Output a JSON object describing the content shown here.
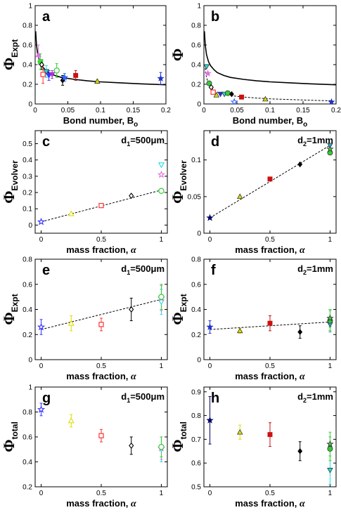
{
  "figure": {
    "panels": [
      {
        "letter": "a",
        "ylabel_main": "Φ",
        "ylabel_sub": "Expt",
        "xlabel": "Bond number, B",
        "xlabel_sub": "o",
        "annotation": "",
        "annotation_sub": "",
        "annotation_rest": ""
      },
      {
        "letter": "b",
        "ylabel_main": "Φ",
        "ylabel_sub": "",
        "xlabel": "Bond number, B",
        "xlabel_sub": "o",
        "annotation": "",
        "annotation_sub": "",
        "annotation_rest": ""
      },
      {
        "letter": "c",
        "ylabel_main": "Φ",
        "ylabel_sub": "Evolver",
        "xlabel": "mass fraction, ",
        "xlabel_sub": "α",
        "annotation": "d",
        "annotation_sub": "1",
        "annotation_rest": "=500μm"
      },
      {
        "letter": "d",
        "ylabel_main": "Φ",
        "ylabel_sub": "Evolver",
        "xlabel": "mass fraction, ",
        "xlabel_sub": "α",
        "annotation": "d",
        "annotation_sub": "2",
        "annotation_rest": "=1mm"
      },
      {
        "letter": "e",
        "ylabel_main": "Φ",
        "ylabel_sub": "Expt",
        "xlabel": "mass fraction, ",
        "xlabel_sub": "α",
        "annotation": "d",
        "annotation_sub": "1",
        "annotation_rest": "=500μm"
      },
      {
        "letter": "f",
        "ylabel_main": "Φ",
        "ylabel_sub": "Expt",
        "xlabel": "mass fraction, ",
        "xlabel_sub": "α",
        "annotation": "d",
        "annotation_sub": "2",
        "annotation_rest": "=1mm"
      },
      {
        "letter": "g",
        "ylabel_main": "Φ",
        "ylabel_sub": "total",
        "xlabel": "mass fraction, ",
        "xlabel_sub": "α",
        "annotation": "d",
        "annotation_sub": "1",
        "annotation_rest": "=500μm"
      },
      {
        "letter": "h",
        "ylabel_main": "Φ",
        "ylabel_sub": "total",
        "xlabel": "mass fraction, ",
        "xlabel_sub": "α",
        "annotation": "d",
        "annotation_sub": "2",
        "annotation_rest": "=1mm"
      }
    ]
  },
  "chart_data": [
    {
      "type": "scatter",
      "panel": "a",
      "xlim": [
        0,
        0.2
      ],
      "ylim": [
        0,
        1
      ],
      "xticks": [
        0,
        0.05,
        0.1,
        0.15,
        0.2
      ],
      "xtick_labels": [
        "0",
        "0.05",
        "0.1",
        "0.15",
        "0.2"
      ],
      "yticks": [
        0,
        0.2,
        0.4,
        0.6,
        0.8,
        1
      ],
      "ytick_labels": [
        "0",
        "0.2",
        "0.4",
        "0.6",
        "0.8",
        "1"
      ],
      "curves": [
        {
          "style": "solid",
          "x": [
            0.0008,
            0.002,
            0.004,
            0.007,
            0.01,
            0.015,
            0.02,
            0.03,
            0.04,
            0.06,
            0.08,
            0.1,
            0.13,
            0.16,
            0.2
          ],
          "y": [
            0.74,
            0.6,
            0.5,
            0.43,
            0.39,
            0.35,
            0.32,
            0.29,
            0.27,
            0.25,
            0.235,
            0.225,
            0.215,
            0.205,
            0.195
          ]
        }
      ],
      "points": [
        {
          "x": 0.005,
          "y": 0.5,
          "err": 0.1,
          "color": "#e070e0",
          "marker": "triangle"
        },
        {
          "x": 0.008,
          "y": 0.43,
          "err": 0.08,
          "color": "#33dd33",
          "marker": "circle"
        },
        {
          "x": 0.01,
          "y": 0.4,
          "err": 0.05,
          "color": "#000000",
          "marker": "diamond-open"
        },
        {
          "x": 0.012,
          "y": 0.3,
          "err": 0.09,
          "color": "#ff3333",
          "marker": "square-open"
        },
        {
          "x": 0.017,
          "y": 0.33,
          "err": 0.06,
          "color": "#22dddd",
          "marker": "triangle-down"
        },
        {
          "x": 0.021,
          "y": 0.29,
          "err": 0.05,
          "color": "#3333ff",
          "marker": "triangle-down"
        },
        {
          "x": 0.026,
          "y": 0.3,
          "err": 0.04,
          "color": "#aa33cc",
          "marker": "triangle-down"
        },
        {
          "x": 0.033,
          "y": 0.34,
          "err": 0.07,
          "color": "#33cc33",
          "marker": "circle-open"
        },
        {
          "x": 0.042,
          "y": 0.24,
          "err": 0.05,
          "color": "#000000",
          "marker": "diamond"
        },
        {
          "x": 0.045,
          "y": 0.27,
          "err": 0.04,
          "color": "#3366ff",
          "marker": "star"
        },
        {
          "x": 0.062,
          "y": 0.29,
          "err": 0.05,
          "color": "#cc1111",
          "marker": "square"
        },
        {
          "x": 0.095,
          "y": 0.23,
          "err": 0.02,
          "color": "#dddd00",
          "marker": "triangle"
        },
        {
          "x": 0.192,
          "y": 0.26,
          "err": 0.06,
          "color": "#2233cc",
          "marker": "star"
        }
      ]
    },
    {
      "type": "scatter",
      "panel": "b",
      "xlim": [
        0,
        0.2
      ],
      "ylim": [
        0,
        1
      ],
      "xticks": [
        0,
        0.05,
        0.1,
        0.15,
        0.2
      ],
      "xtick_labels": [
        "0",
        "0.05",
        "0.1",
        "0.15",
        "0.2"
      ],
      "yticks": [
        0,
        0.2,
        0.4,
        0.6,
        0.8,
        1
      ],
      "ytick_labels": [
        "0",
        "0.2",
        "0.4",
        "0.6",
        "0.8",
        "1"
      ],
      "curves": [
        {
          "style": "solid",
          "x": [
            0.0008,
            0.002,
            0.004,
            0.007,
            0.01,
            0.015,
            0.02,
            0.03,
            0.04,
            0.06,
            0.08,
            0.1,
            0.13,
            0.16,
            0.2
          ],
          "y": [
            0.74,
            0.6,
            0.5,
            0.43,
            0.39,
            0.35,
            0.32,
            0.29,
            0.27,
            0.25,
            0.235,
            0.225,
            0.215,
            0.205,
            0.195
          ]
        },
        {
          "style": "dashed",
          "x": [
            0.0015,
            0.003,
            0.006,
            0.01,
            0.015,
            0.02,
            0.03,
            0.04,
            0.06,
            0.08,
            0.1,
            0.13,
            0.16,
            0.195
          ],
          "y": [
            0.4,
            0.3,
            0.22,
            0.17,
            0.14,
            0.12,
            0.1,
            0.085,
            0.07,
            0.06,
            0.052,
            0.045,
            0.038,
            0.032
          ]
        }
      ],
      "points": [
        {
          "x": 0.004,
          "y": 0.38,
          "color": "#22dddd",
          "marker": "triangle-down"
        },
        {
          "x": 0.006,
          "y": 0.31,
          "color": "#e070e0",
          "marker": "star"
        },
        {
          "x": 0.008,
          "y": 0.21,
          "color": "#33cc33",
          "marker": "circle"
        },
        {
          "x": 0.011,
          "y": 0.17,
          "color": "#000000",
          "marker": "diamond-open"
        },
        {
          "x": 0.014,
          "y": 0.12,
          "color": "#ff3333",
          "marker": "square-open"
        },
        {
          "x": 0.019,
          "y": 0.09,
          "color": "#dddd00",
          "marker": "triangle"
        },
        {
          "x": 0.025,
          "y": 0.1,
          "color": "#3333aa",
          "marker": "triangle-down"
        },
        {
          "x": 0.031,
          "y": 0.1,
          "color": "#22dddd",
          "marker": "triangle-down"
        },
        {
          "x": 0.036,
          "y": 0.11,
          "color": "#33cc33",
          "marker": "circle"
        },
        {
          "x": 0.042,
          "y": 0.1,
          "color": "#000000",
          "marker": "diamond"
        },
        {
          "x": 0.046,
          "y": 0.02,
          "color": "#3366ff",
          "marker": "star-open"
        },
        {
          "x": 0.057,
          "y": 0.07,
          "color": "#cc1111",
          "marker": "square"
        },
        {
          "x": 0.093,
          "y": 0.05,
          "color": "#dddd00",
          "marker": "triangle"
        },
        {
          "x": 0.193,
          "y": 0.02,
          "color": "#2233cc",
          "marker": "star"
        }
      ]
    },
    {
      "type": "scatter",
      "panel": "c",
      "xlim": [
        -0.05,
        1.05
      ],
      "ylim": [
        -0.05,
        0.58
      ],
      "xticks": [
        0,
        0.5,
        1
      ],
      "xtick_labels": [
        "0",
        "0.5",
        "1"
      ],
      "yticks": [
        0,
        0.1,
        0.2,
        0.3,
        0.4,
        0.5
      ],
      "ytick_labels": [
        "0",
        "0.1",
        "0.2",
        "0.3",
        "0.4",
        "0.5"
      ],
      "curves": [
        {
          "style": "dashed",
          "x": [
            0,
            1
          ],
          "y": [
            0.02,
            0.215
          ]
        }
      ],
      "points": [
        {
          "x": 0,
          "y": 0.02,
          "color": "#3333ff",
          "marker": "star-open"
        },
        {
          "x": 0.25,
          "y": 0.07,
          "color": "#dddd00",
          "marker": "triangle-open"
        },
        {
          "x": 0.5,
          "y": 0.12,
          "color": "#ff3333",
          "marker": "square-open"
        },
        {
          "x": 0.75,
          "y": 0.18,
          "color": "#000000",
          "marker": "diamond-open"
        },
        {
          "x": 1,
          "y": 0.21,
          "color": "#33cc33",
          "marker": "circle-open"
        },
        {
          "x": 1,
          "y": 0.31,
          "color": "#e070e0",
          "marker": "star-open"
        },
        {
          "x": 1,
          "y": 0.37,
          "color": "#22dddd",
          "marker": "triangle-down-open"
        }
      ]
    },
    {
      "type": "scatter",
      "panel": "d",
      "xlim": [
        -0.05,
        1.05
      ],
      "ylim": [
        0,
        0.14
      ],
      "xticks": [
        0,
        0.5,
        1
      ],
      "xtick_labels": [
        "0",
        "0.5",
        "1"
      ],
      "yticks": [
        0,
        0.05,
        0.1
      ],
      "ytick_labels": [
        "0",
        "0.05",
        "0.1"
      ],
      "curves": [
        {
          "style": "dashed",
          "x": [
            0,
            1
          ],
          "y": [
            0.021,
            0.12
          ]
        }
      ],
      "points": [
        {
          "x": 0,
          "y": 0.021,
          "color": "#000066",
          "marker": "star"
        },
        {
          "x": 0.25,
          "y": 0.05,
          "color": "#dddd00",
          "marker": "triangle"
        },
        {
          "x": 0.5,
          "y": 0.074,
          "color": "#cc1111",
          "marker": "square"
        },
        {
          "x": 0.75,
          "y": 0.094,
          "color": "#000000",
          "marker": "diamond"
        },
        {
          "x": 1,
          "y": 0.11,
          "color": "#33cc33",
          "marker": "circle"
        },
        {
          "x": 1,
          "y": 0.115,
          "color": "#44cc44",
          "marker": "star"
        },
        {
          "x": 1,
          "y": 0.12,
          "color": "#22aacc",
          "marker": "triangle-down"
        }
      ]
    },
    {
      "type": "scatter",
      "panel": "e",
      "xlim": [
        -0.05,
        1.05
      ],
      "ylim": [
        0,
        0.8
      ],
      "xticks": [
        0,
        0.5,
        1
      ],
      "xtick_labels": [
        "0",
        "0.5",
        "1"
      ],
      "yticks": [
        0,
        0.2,
        0.4,
        0.6,
        0.8
      ],
      "ytick_labels": [
        "0",
        "0.2",
        "0.4",
        "0.6",
        "0.8"
      ],
      "curves": [
        {
          "style": "dashed",
          "x": [
            0,
            1
          ],
          "y": [
            0.24,
            0.48
          ]
        }
      ],
      "points": [
        {
          "x": 0,
          "y": 0.26,
          "err": 0.06,
          "color": "#3333ff",
          "marker": "star-open"
        },
        {
          "x": 0.25,
          "y": 0.29,
          "err": 0.06,
          "color": "#dddd00",
          "marker": "triangle-open"
        },
        {
          "x": 0.5,
          "y": 0.28,
          "err": 0.05,
          "color": "#ff3333",
          "marker": "square-open"
        },
        {
          "x": 0.75,
          "y": 0.4,
          "err": 0.09,
          "color": "#000000",
          "marker": "diamond-open"
        },
        {
          "x": 1,
          "y": 0.46,
          "err": 0.1,
          "color": "#22dddd",
          "marker": "triangle-down-open"
        },
        {
          "x": 1,
          "y": 0.49,
          "err": 0.1,
          "color": "#e070e0",
          "marker": "star-open"
        },
        {
          "x": 1,
          "y": 0.5,
          "err": 0.1,
          "color": "#33cc33",
          "marker": "circle-open"
        }
      ]
    },
    {
      "type": "scatter",
      "panel": "f",
      "xlim": [
        -0.05,
        1.05
      ],
      "ylim": [
        0,
        0.8
      ],
      "xticks": [
        0,
        0.5,
        1
      ],
      "xtick_labels": [
        "0",
        "0.5",
        "1"
      ],
      "yticks": [
        0,
        0.2,
        0.4,
        0.6,
        0.8
      ],
      "ytick_labels": [
        "0",
        "0.2",
        "0.4",
        "0.6",
        "0.8"
      ],
      "curves": [
        {
          "style": "dashed",
          "x": [
            0,
            1
          ],
          "y": [
            0.24,
            0.3
          ]
        }
      ],
      "points": [
        {
          "x": 0,
          "y": 0.26,
          "err": 0.05,
          "color": "#2233cc",
          "marker": "star"
        },
        {
          "x": 0.25,
          "y": 0.23,
          "err": 0.02,
          "color": "#dddd00",
          "marker": "triangle"
        },
        {
          "x": 0.5,
          "y": 0.29,
          "err": 0.06,
          "color": "#cc1111",
          "marker": "square"
        },
        {
          "x": 0.75,
          "y": 0.22,
          "err": 0.05,
          "color": "#000000",
          "marker": "diamond"
        },
        {
          "x": 1,
          "y": 0.28,
          "err": 0.06,
          "color": "#22aacc",
          "marker": "triangle-down"
        },
        {
          "x": 1,
          "y": 0.31,
          "err": 0.08,
          "color": "#33cc33",
          "marker": "circle"
        },
        {
          "x": 1,
          "y": 0.33,
          "err": 0.07,
          "color": "#44cc44",
          "marker": "star"
        }
      ]
    },
    {
      "type": "scatter",
      "panel": "g",
      "xlim": [
        -0.05,
        1.05
      ],
      "ylim": [
        0.2,
        1.0
      ],
      "xticks": [
        0,
        0.5,
        1
      ],
      "xtick_labels": [
        "0",
        "0.5",
        "1"
      ],
      "yticks": [
        0.2,
        0.4,
        0.6,
        0.8,
        1
      ],
      "ytick_labels": [
        "0.2",
        "0.4",
        "0.6",
        "0.8",
        "1"
      ],
      "curves": [],
      "points": [
        {
          "x": 0,
          "y": 0.82,
          "err": 0.05,
          "color": "#3333ff",
          "marker": "star-open"
        },
        {
          "x": 0.25,
          "y": 0.73,
          "err": 0.05,
          "color": "#dddd00",
          "marker": "triangle-open"
        },
        {
          "x": 0.5,
          "y": 0.61,
          "err": 0.05,
          "color": "#ff3333",
          "marker": "square-open"
        },
        {
          "x": 0.75,
          "y": 0.53,
          "err": 0.07,
          "color": "#000000",
          "marker": "diamond-open"
        },
        {
          "x": 1,
          "y": 0.5,
          "err": 0.1,
          "color": "#22dddd",
          "marker": "triangle-down-open"
        },
        {
          "x": 1,
          "y": 0.51,
          "err": 0.09,
          "color": "#e070e0",
          "marker": "star-open"
        },
        {
          "x": 1,
          "y": 0.52,
          "err": 0.08,
          "color": "#33cc33",
          "marker": "circle-open"
        }
      ]
    },
    {
      "type": "scatter",
      "panel": "h",
      "xlim": [
        -0.05,
        1.05
      ],
      "ylim": [
        0.5,
        0.92
      ],
      "xticks": [
        0,
        0.5,
        1
      ],
      "xtick_labels": [
        "0",
        "0.5",
        "1"
      ],
      "yticks": [
        0.5,
        0.6,
        0.7,
        0.8,
        0.9
      ],
      "ytick_labels": [
        "0.5",
        "0.6",
        "0.7",
        "0.8",
        "0.9"
      ],
      "curves": [],
      "points": [
        {
          "x": 0,
          "y": 0.78,
          "err": 0.1,
          "color": "#000066",
          "marker": "star"
        },
        {
          "x": 0.25,
          "y": 0.73,
          "err": 0.03,
          "color": "#dddd00",
          "marker": "triangle"
        },
        {
          "x": 0.5,
          "y": 0.72,
          "err": 0.05,
          "color": "#cc1111",
          "marker": "square"
        },
        {
          "x": 0.75,
          "y": 0.65,
          "err": 0.04,
          "color": "#000000",
          "marker": "diamond"
        },
        {
          "x": 1,
          "y": 0.57,
          "err": 0.06,
          "color": "#22dddd",
          "marker": "triangle-down"
        },
        {
          "x": 1,
          "y": 0.66,
          "err": 0.05,
          "color": "#33cc33",
          "marker": "circle"
        },
        {
          "x": 1,
          "y": 0.68,
          "err": 0.05,
          "color": "#44cc44",
          "marker": "star"
        }
      ]
    }
  ]
}
